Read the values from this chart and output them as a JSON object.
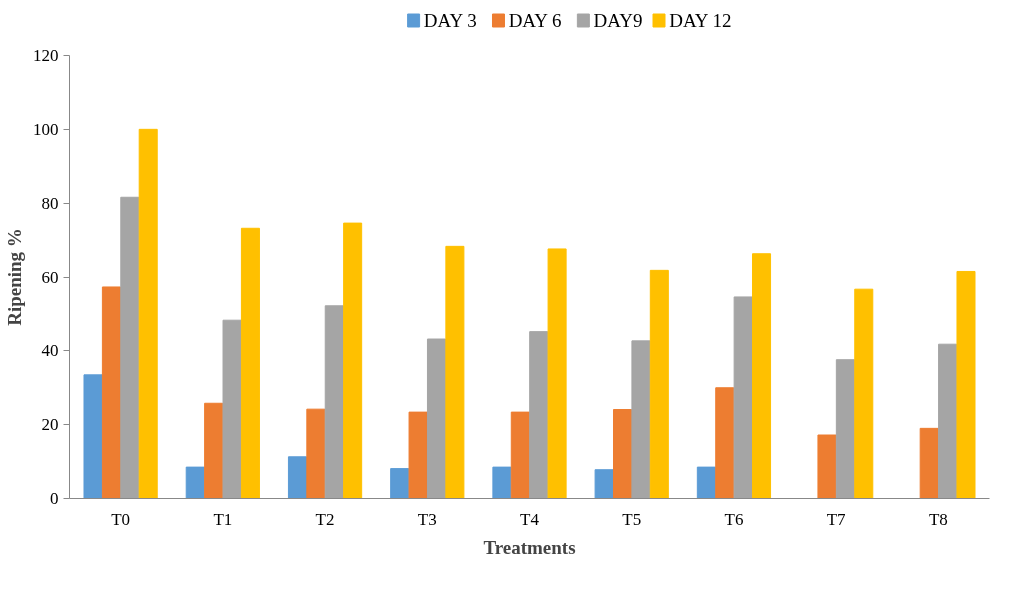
{
  "chart_data": {
    "type": "bar",
    "xlabel": "Treatments",
    "ylabel": "Ripening %",
    "categories": [
      "T0",
      "T1",
      "T2",
      "T3",
      "T4",
      "T5",
      "T6",
      "T7",
      "T8"
    ],
    "series": [
      {
        "name": "DAY 3",
        "color": "#5b9bd5",
        "values": [
          33.5,
          8.5,
          11.3,
          8.1,
          8.5,
          7.8,
          8.5,
          null,
          null
        ]
      },
      {
        "name": "DAY 6",
        "color": "#ed7d31",
        "values": [
          57.3,
          25.8,
          24.2,
          23.4,
          23.4,
          24.1,
          30.0,
          17.2,
          19.0
        ]
      },
      {
        "name": "DAY9",
        "color": "#a5a5a5",
        "values": [
          81.6,
          48.3,
          52.2,
          43.2,
          45.2,
          42.7,
          54.6,
          37.6,
          41.8
        ]
      },
      {
        "name": "DAY 12",
        "color": "#ffc000",
        "values": [
          100,
          73.2,
          74.6,
          68.3,
          67.6,
          61.8,
          66.3,
          56.7,
          61.5
        ]
      }
    ],
    "ylim": [
      0,
      120
    ],
    "yticks": [
      0,
      20,
      40,
      60,
      80,
      100,
      120
    ],
    "grid": false,
    "legend": "top"
  }
}
